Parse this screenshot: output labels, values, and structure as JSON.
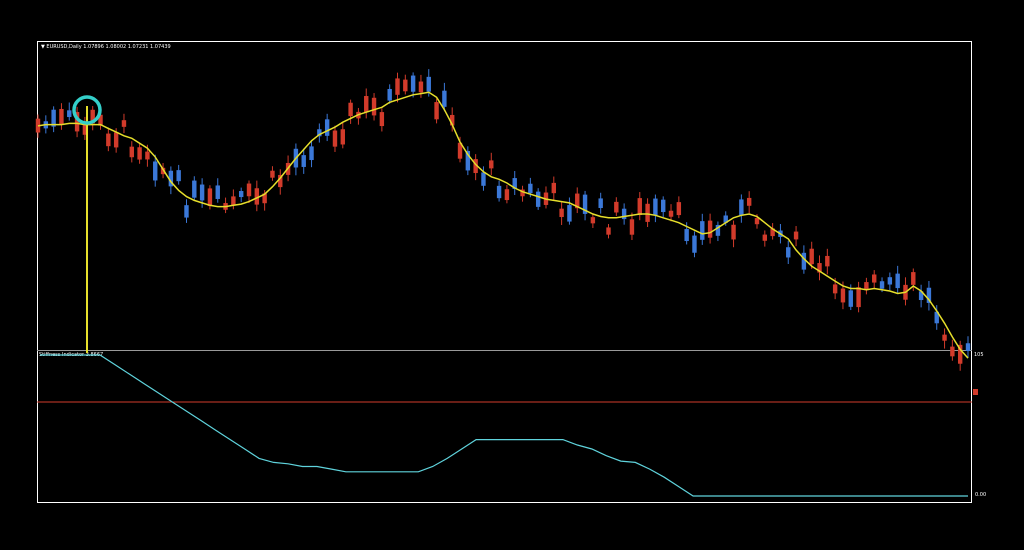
{
  "header": {
    "symbol_line": "▼ EURUSD,Daily  1.07896 1.08002 1.07231 1.07439"
  },
  "subwindow": {
    "title": "Stiffness Indicator 3.8667",
    "axis_top_label": "105",
    "axis_bottom_label": "0.00"
  },
  "colors": {
    "bull_candle": "#3b78d8",
    "bear_candle": "#d23b2b",
    "moving_average": "#e6df2b",
    "indicator_line": "#5fd3dc",
    "level_line": "#d23b2b",
    "highlight_circle": "#34cfc9"
  },
  "chart_data": [
    {
      "type": "line",
      "title": "EURUSD,Daily",
      "ohlc_last": {
        "open": 1.07896,
        "high": 1.08002,
        "low": 1.07231,
        "close": 1.07439
      },
      "ma_shape": [
        105,
        104,
        104,
        104,
        103,
        103,
        104,
        104,
        104,
        107,
        110,
        113,
        115,
        119,
        123,
        130,
        140,
        150,
        157,
        162,
        165,
        167,
        169,
        170,
        170,
        169,
        168,
        166,
        163,
        160,
        154,
        147,
        139,
        131,
        124,
        117,
        112,
        109,
        106,
        102,
        99,
        96,
        94,
        92,
        90,
        86,
        84,
        82,
        80,
        79,
        78,
        82,
        92,
        104,
        118,
        128,
        136,
        142,
        146,
        148,
        151,
        155,
        158,
        160,
        162,
        164,
        165,
        166,
        167,
        170,
        173,
        176,
        178,
        179,
        179,
        178,
        177,
        176,
        176,
        177,
        179,
        181,
        183,
        186,
        189,
        192,
        191,
        187,
        183,
        179,
        177,
        176,
        178,
        183,
        188,
        192,
        196,
        205,
        212,
        218,
        222,
        226,
        230,
        234,
        236,
        236,
        237,
        236,
        237,
        238,
        240,
        239,
        234,
        238,
        245,
        254,
        264,
        275,
        285,
        292
      ],
      "notes": "Price candles with a moving average; a vertical marker and circle highlight an early bar."
    },
    {
      "type": "line",
      "title": "Stiffness Indicator 3.8667",
      "ylim": [
        0,
        105
      ],
      "levels": [
        70
      ],
      "series_shape": [
        105,
        98,
        91,
        84,
        77,
        70,
        63,
        56,
        49,
        42,
        35,
        28,
        25,
        24,
        22,
        22,
        20,
        18,
        18,
        18,
        18,
        18,
        18,
        22,
        28,
        35,
        42,
        42,
        42,
        42,
        42,
        42,
        42,
        38,
        35,
        30,
        26,
        25,
        20,
        14,
        7,
        0,
        0,
        0,
        0,
        0,
        0,
        0,
        0,
        0,
        0,
        0,
        0,
        0,
        0,
        0,
        0,
        0,
        0,
        0,
        0
      ]
    }
  ]
}
